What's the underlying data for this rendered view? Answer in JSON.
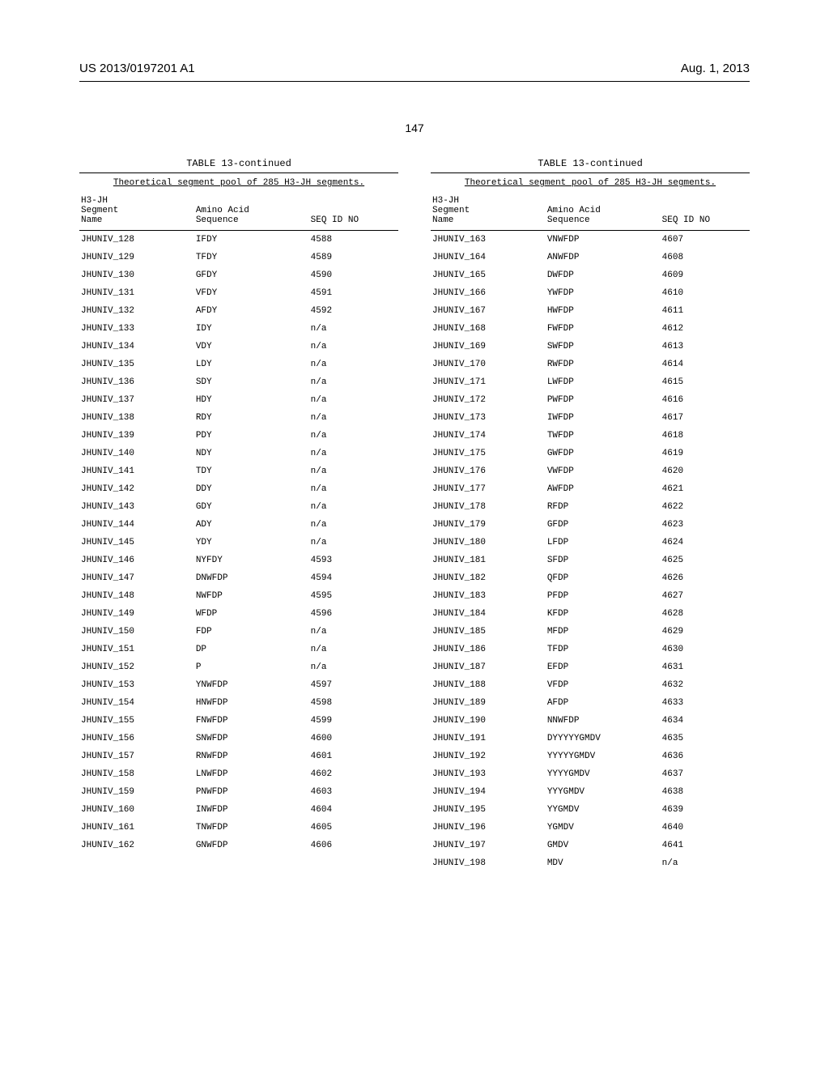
{
  "header": {
    "publication": "US 2013/0197201 A1",
    "date": "Aug. 1, 2013"
  },
  "page_number": "147",
  "table": {
    "title": "TABLE 13-continued",
    "subtitle": "Theoretical segment pool of 285 H3-JH segments.",
    "columns": [
      "H3-JH\nSegment\nName",
      "Amino Acid\nSequence",
      "SEQ ID NO"
    ],
    "left_rows": [
      [
        "JHUNIV_128",
        "IFDY",
        "4588"
      ],
      [
        "JHUNIV_129",
        "TFDY",
        "4589"
      ],
      [
        "JHUNIV_130",
        "GFDY",
        "4590"
      ],
      [
        "JHUNIV_131",
        "VFDY",
        "4591"
      ],
      [
        "JHUNIV_132",
        "AFDY",
        "4592"
      ],
      [
        "JHUNIV_133",
        "IDY",
        "n/a"
      ],
      [
        "JHUNIV_134",
        "VDY",
        "n/a"
      ],
      [
        "JHUNIV_135",
        "LDY",
        "n/a"
      ],
      [
        "JHUNIV_136",
        "SDY",
        "n/a"
      ],
      [
        "JHUNIV_137",
        "HDY",
        "n/a"
      ],
      [
        "JHUNIV_138",
        "RDY",
        "n/a"
      ],
      [
        "JHUNIV_139",
        "PDY",
        "n/a"
      ],
      [
        "JHUNIV_140",
        "NDY",
        "n/a"
      ],
      [
        "JHUNIV_141",
        "TDY",
        "n/a"
      ],
      [
        "JHUNIV_142",
        "DDY",
        "n/a"
      ],
      [
        "JHUNIV_143",
        "GDY",
        "n/a"
      ],
      [
        "JHUNIV_144",
        "ADY",
        "n/a"
      ],
      [
        "JHUNIV_145",
        "YDY",
        "n/a"
      ],
      [
        "JHUNIV_146",
        "NYFDY",
        "4593"
      ],
      [
        "JHUNIV_147",
        "DNWFDP",
        "4594"
      ],
      [
        "JHUNIV_148",
        "NWFDP",
        "4595"
      ],
      [
        "JHUNIV_149",
        "WFDP",
        "4596"
      ],
      [
        "JHUNIV_150",
        "FDP",
        "n/a"
      ],
      [
        "JHUNIV_151",
        "DP",
        "n/a"
      ],
      [
        "JHUNIV_152",
        "P",
        "n/a"
      ],
      [
        "JHUNIV_153",
        "YNWFDP",
        "4597"
      ],
      [
        "JHUNIV_154",
        "HNWFDP",
        "4598"
      ],
      [
        "JHUNIV_155",
        "FNWFDP",
        "4599"
      ],
      [
        "JHUNIV_156",
        "SNWFDP",
        "4600"
      ],
      [
        "JHUNIV_157",
        "RNWFDP",
        "4601"
      ],
      [
        "JHUNIV_158",
        "LNWFDP",
        "4602"
      ],
      [
        "JHUNIV_159",
        "PNWFDP",
        "4603"
      ],
      [
        "JHUNIV_160",
        "INWFDP",
        "4604"
      ],
      [
        "JHUNIV_161",
        "TNWFDP",
        "4605"
      ],
      [
        "JHUNIV_162",
        "GNWFDP",
        "4606"
      ]
    ],
    "right_rows": [
      [
        "JHUNIV_163",
        "VNWFDP",
        "4607"
      ],
      [
        "JHUNIV_164",
        "ANWFDP",
        "4608"
      ],
      [
        "JHUNIV_165",
        "DWFDP",
        "4609"
      ],
      [
        "JHUNIV_166",
        "YWFDP",
        "4610"
      ],
      [
        "JHUNIV_167",
        "HWFDP",
        "4611"
      ],
      [
        "JHUNIV_168",
        "FWFDP",
        "4612"
      ],
      [
        "JHUNIV_169",
        "SWFDP",
        "4613"
      ],
      [
        "JHUNIV_170",
        "RWFDP",
        "4614"
      ],
      [
        "JHUNIV_171",
        "LWFDP",
        "4615"
      ],
      [
        "JHUNIV_172",
        "PWFDP",
        "4616"
      ],
      [
        "JHUNIV_173",
        "IWFDP",
        "4617"
      ],
      [
        "JHUNIV_174",
        "TWFDP",
        "4618"
      ],
      [
        "JHUNIV_175",
        "GWFDP",
        "4619"
      ],
      [
        "JHUNIV_176",
        "VWFDP",
        "4620"
      ],
      [
        "JHUNIV_177",
        "AWFDP",
        "4621"
      ],
      [
        "JHUNIV_178",
        "RFDP",
        "4622"
      ],
      [
        "JHUNIV_179",
        "GFDP",
        "4623"
      ],
      [
        "JHUNIV_180",
        "LFDP",
        "4624"
      ],
      [
        "JHUNIV_181",
        "SFDP",
        "4625"
      ],
      [
        "JHUNIV_182",
        "QFDP",
        "4626"
      ],
      [
        "JHUNIV_183",
        "PFDP",
        "4627"
      ],
      [
        "JHUNIV_184",
        "KFDP",
        "4628"
      ],
      [
        "JHUNIV_185",
        "MFDP",
        "4629"
      ],
      [
        "JHUNIV_186",
        "TFDP",
        "4630"
      ],
      [
        "JHUNIV_187",
        "EFDP",
        "4631"
      ],
      [
        "JHUNIV_188",
        "VFDP",
        "4632"
      ],
      [
        "JHUNIV_189",
        "AFDP",
        "4633"
      ],
      [
        "JHUNIV_190",
        "NNWFDP",
        "4634"
      ],
      [
        "JHUNIV_191",
        "DYYYYYGMDV",
        "4635"
      ],
      [
        "JHUNIV_192",
        "YYYYYGMDV",
        "4636"
      ],
      [
        "JHUNIV_193",
        "YYYYGMDV",
        "4637"
      ],
      [
        "JHUNIV_194",
        "YYYGMDV",
        "4638"
      ],
      [
        "JHUNIV_195",
        "YYGMDV",
        "4639"
      ],
      [
        "JHUNIV_196",
        "YGMDV",
        "4640"
      ],
      [
        "JHUNIV_197",
        "GMDV",
        "4641"
      ],
      [
        "JHUNIV_198",
        "MDV",
        "n/a"
      ]
    ]
  }
}
